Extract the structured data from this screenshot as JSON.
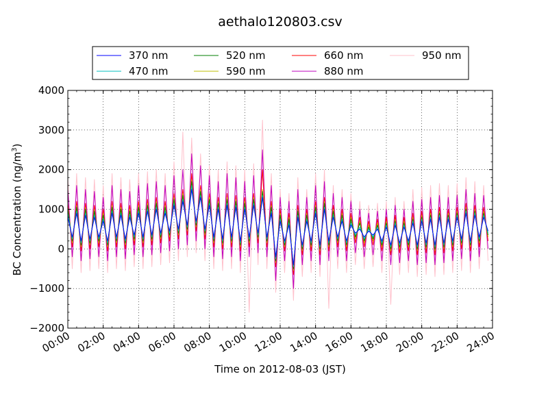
{
  "chart_data": {
    "type": "line",
    "title": "aethalo120803.csv",
    "xlabel": "Time on 2012-08-03 (JST)",
    "ylabel": "BC Concentration (ng/m",
    "ylabel_sup": "3",
    "ylabel_close": ")",
    "xlim": [
      0,
      24
    ],
    "ylim": [
      -2000,
      4000
    ],
    "grid": true,
    "legend_position": "top",
    "x_ticks": [
      0,
      2,
      4,
      6,
      8,
      10,
      12,
      14,
      16,
      18,
      20,
      22,
      24
    ],
    "x_tick_labels": [
      "00:00",
      "02:00",
      "04:00",
      "06:00",
      "08:00",
      "10:00",
      "12:00",
      "14:00",
      "16:00",
      "18:00",
      "20:00",
      "22:00",
      "24:00"
    ],
    "y_ticks": [
      -2000,
      -1000,
      0,
      1000,
      2000,
      3000,
      4000
    ],
    "y_tick_labels": [
      "−2000",
      "−1000",
      "0",
      "1000",
      "2000",
      "3000",
      "4000"
    ],
    "x_unit": "hours",
    "x": [
      0,
      0.25,
      0.5,
      0.75,
      1,
      1.25,
      1.5,
      1.75,
      2,
      2.25,
      2.5,
      2.75,
      3,
      3.25,
      3.5,
      3.75,
      4,
      4.25,
      4.5,
      4.75,
      5,
      5.25,
      5.5,
      5.75,
      6,
      6.25,
      6.5,
      6.75,
      7,
      7.25,
      7.5,
      7.75,
      8,
      8.25,
      8.5,
      8.75,
      9,
      9.25,
      9.5,
      9.75,
      10,
      10.25,
      10.5,
      10.75,
      11,
      11.25,
      11.5,
      11.75,
      12,
      12.25,
      12.5,
      12.75,
      13,
      13.25,
      13.5,
      13.75,
      14,
      14.25,
      14.5,
      14.75,
      15,
      15.25,
      15.5,
      15.75,
      16,
      16.25,
      16.5,
      16.75,
      17,
      17.25,
      17.5,
      17.75,
      18,
      18.25,
      18.5,
      18.75,
      19,
      19.25,
      19.5,
      19.75,
      20,
      20.25,
      20.5,
      20.75,
      21,
      21.25,
      21.5,
      21.75,
      22,
      22.25,
      22.5,
      22.75,
      23,
      23.25,
      23.5,
      23.75
    ],
    "series": [
      {
        "name": "370 nm",
        "color": "#0000ff",
        "values": [
          800,
          300,
          900,
          200,
          850,
          250,
          800,
          300,
          700,
          200,
          900,
          300,
          850,
          250,
          800,
          350,
          900,
          300,
          950,
          350,
          1000,
          400,
          900,
          450,
          1100,
          500,
          1200,
          600,
          1500,
          700,
          1300,
          500,
          1100,
          300,
          1000,
          250,
          1100,
          300,
          1050,
          200,
          1000,
          300,
          1100,
          400,
          1300,
          300,
          900,
          -200,
          700,
          200,
          600,
          -400,
          800,
          100,
          700,
          200,
          900,
          100,
          1000,
          200,
          800,
          300,
          700,
          200,
          600,
          400,
          500,
          300,
          450,
          350,
          500,
          200,
          550,
          100,
          600,
          150,
          550,
          200,
          650,
          100,
          700,
          150,
          750,
          100,
          800,
          150,
          750,
          200,
          800,
          250,
          900,
          200,
          850,
          300,
          800,
          450
        ]
      },
      {
        "name": "470 nm",
        "color": "#00bfbf",
        "values": [
          900,
          250,
          950,
          150,
          900,
          200,
          850,
          250,
          750,
          150,
          950,
          250,
          900,
          200,
          850,
          300,
          950,
          250,
          1000,
          300,
          1050,
          350,
          950,
          400,
          1150,
          450,
          1250,
          550,
          1600,
          650,
          1350,
          450,
          1150,
          250,
          1050,
          200,
          1150,
          250,
          1100,
          150,
          1050,
          250,
          1150,
          350,
          1350,
          250,
          950,
          -250,
          750,
          150,
          650,
          -450,
          850,
          50,
          750,
          150,
          950,
          50,
          1050,
          150,
          850,
          250,
          750,
          150,
          650,
          350,
          550,
          250,
          500,
          300,
          550,
          150,
          600,
          50,
          650,
          100,
          600,
          150,
          700,
          50,
          750,
          100,
          800,
          50,
          850,
          100,
          800,
          150,
          850,
          200,
          950,
          150,
          900,
          250,
          850,
          400
        ]
      },
      {
        "name": "520 nm",
        "color": "#007f00",
        "values": [
          1000,
          200,
          1050,
          100,
          1000,
          150,
          950,
          200,
          850,
          100,
          1050,
          200,
          1000,
          150,
          950,
          250,
          1050,
          200,
          1100,
          250,
          1150,
          300,
          1050,
          350,
          1250,
          400,
          1350,
          500,
          1700,
          600,
          1450,
          400,
          1250,
          200,
          1150,
          150,
          1250,
          200,
          1200,
          100,
          1150,
          200,
          1250,
          300,
          1450,
          200,
          1050,
          -300,
          850,
          100,
          750,
          -500,
          950,
          0,
          850,
          100,
          1050,
          0,
          1150,
          100,
          950,
          200,
          850,
          100,
          750,
          300,
          650,
          200,
          550,
          250,
          600,
          100,
          650,
          0,
          700,
          50,
          650,
          100,
          750,
          0,
          800,
          50,
          850,
          0,
          900,
          50,
          850,
          100,
          900,
          150,
          1000,
          100,
          950,
          200,
          900,
          350
        ]
      },
      {
        "name": "590 nm",
        "color": "#bfbf00",
        "values": [
          1050,
          150,
          1100,
          50,
          1050,
          100,
          1000,
          150,
          900,
          50,
          1100,
          150,
          1050,
          100,
          1000,
          200,
          1100,
          150,
          1150,
          200,
          1200,
          250,
          1100,
          300,
          1300,
          350,
          1400,
          450,
          1750,
          550,
          1500,
          350,
          1300,
          150,
          1200,
          100,
          1300,
          150,
          1250,
          50,
          1200,
          150,
          1300,
          250,
          1500,
          150,
          1100,
          -350,
          900,
          50,
          800,
          -550,
          1000,
          -50,
          900,
          50,
          1100,
          -50,
          1200,
          50,
          1000,
          150,
          900,
          50,
          800,
          250,
          700,
          150,
          600,
          200,
          650,
          50,
          700,
          -50,
          750,
          0,
          700,
          50,
          800,
          -50,
          850,
          0,
          900,
          -50,
          950,
          0,
          900,
          50,
          950,
          100,
          1050,
          50,
          1000,
          150,
          950,
          300
        ]
      },
      {
        "name": "660 nm",
        "color": "#ff0000",
        "values": [
          1150,
          50,
          1200,
          -50,
          1150,
          0,
          1100,
          50,
          1000,
          -50,
          1200,
          50,
          1150,
          0,
          1100,
          100,
          1200,
          50,
          1250,
          100,
          1300,
          150,
          1200,
          200,
          1400,
          250,
          1500,
          350,
          1900,
          450,
          1600,
          250,
          1400,
          50,
          1300,
          0,
          1400,
          50,
          1350,
          -50,
          1300,
          50,
          1400,
          150,
          2000,
          50,
          1200,
          -450,
          1000,
          -50,
          900,
          -650,
          1100,
          -150,
          1000,
          -50,
          1200,
          -150,
          1300,
          -50,
          1100,
          50,
          1000,
          -50,
          900,
          150,
          800,
          50,
          700,
          100,
          750,
          -50,
          800,
          -150,
          850,
          -100,
          800,
          -50,
          900,
          -150,
          950,
          -100,
          1000,
          -150,
          1050,
          -100,
          1000,
          -50,
          1050,
          0,
          1150,
          -50,
          1100,
          50,
          1050,
          200
        ]
      },
      {
        "name": "880 nm",
        "color": "#bf00bf",
        "values": [
          1500,
          -200,
          1600,
          -300,
          1500,
          -250,
          1450,
          -200,
          1300,
          -300,
          1600,
          -200,
          1500,
          -250,
          1450,
          -150,
          1600,
          -200,
          1650,
          -150,
          1700,
          -100,
          1600,
          -50,
          1850,
          0,
          2000,
          100,
          2400,
          200,
          2100,
          0,
          1850,
          -200,
          1700,
          -250,
          1900,
          -200,
          1800,
          -300,
          1700,
          -200,
          1850,
          -100,
          2500,
          -200,
          1600,
          -800,
          1300,
          -300,
          1200,
          -1000,
          1500,
          -400,
          1300,
          -300,
          1600,
          -400,
          1700,
          -300,
          1400,
          -200,
          1300,
          -300,
          1200,
          -100,
          1000,
          -200,
          900,
          -150,
          950,
          -300,
          1000,
          -400,
          1100,
          -350,
          1000,
          -300,
          1200,
          -400,
          1250,
          -350,
          1300,
          -400,
          1350,
          -350,
          1300,
          -300,
          1350,
          -250,
          1500,
          -300,
          1400,
          -200,
          1350,
          0
        ]
      },
      {
        "name": "950 nm",
        "color": "#ffc0cb",
        "values": [
          1800,
          -500,
          1900,
          -600,
          1800,
          -550,
          1750,
          -500,
          1600,
          -600,
          1900,
          -500,
          1800,
          -550,
          1750,
          -450,
          1900,
          -500,
          1950,
          -450,
          2000,
          -400,
          1900,
          -350,
          2200,
          -300,
          2950,
          -200,
          2800,
          -100,
          2400,
          -300,
          2100,
          -500,
          2000,
          -550,
          2200,
          -500,
          2100,
          -600,
          2000,
          -1600,
          2150,
          -400,
          3250,
          -500,
          1900,
          -1100,
          1500,
          -600,
          1400,
          -1300,
          1800,
          -700,
          1500,
          -600,
          1900,
          -700,
          2000,
          -1500,
          1600,
          -500,
          1500,
          -600,
          1400,
          -400,
          1200,
          -500,
          1100,
          -450,
          1150,
          -600,
          1200,
          -1400,
          1300,
          -650,
          1200,
          -600,
          1500,
          -700,
          1550,
          -650,
          1600,
          -700,
          1650,
          -650,
          1600,
          -600,
          1650,
          -550,
          1800,
          -600,
          1700,
          -500,
          1600,
          -300
        ]
      }
    ]
  }
}
